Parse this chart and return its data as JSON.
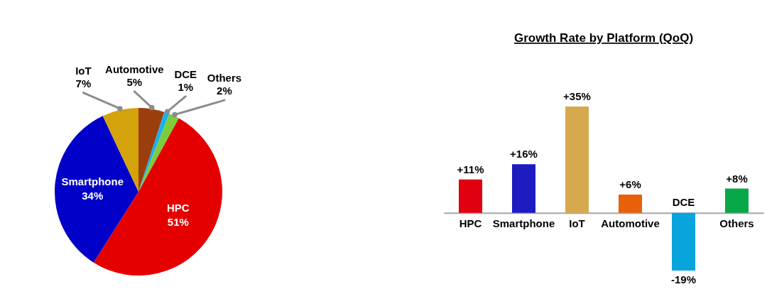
{
  "chart_data": [
    {
      "type": "pie",
      "categories": [
        "Automotive",
        "DCE",
        "Others",
        "HPC",
        "Smartphone",
        "IoT"
      ],
      "values": [
        5,
        1,
        2,
        51,
        34,
        7
      ],
      "colors": [
        "#9a3f0c",
        "#18b0f0",
        "#7ccc3c",
        "#e50000",
        "#0000c8",
        "#d4a20a"
      ],
      "value_labels": [
        "5%",
        "1%",
        "2%",
        "51%",
        "34%",
        "7%"
      ]
    },
    {
      "type": "bar",
      "title": "Growth Rate by Platform (QoQ)",
      "categories": [
        "HPC",
        "Smartphone",
        "IoT",
        "Automotive",
        "DCE",
        "Others"
      ],
      "values": [
        11,
        16,
        35,
        6,
        -19,
        8
      ],
      "colors": [
        "#e00010",
        "#1c1cc0",
        "#d6a94e",
        "#e8600a",
        "#08a4dc",
        "#08a848"
      ],
      "value_labels": [
        "+11%",
        "+16%",
        "+35%",
        "+6%",
        "-19%",
        "+8%"
      ],
      "tick_labels": "x"
    }
  ]
}
